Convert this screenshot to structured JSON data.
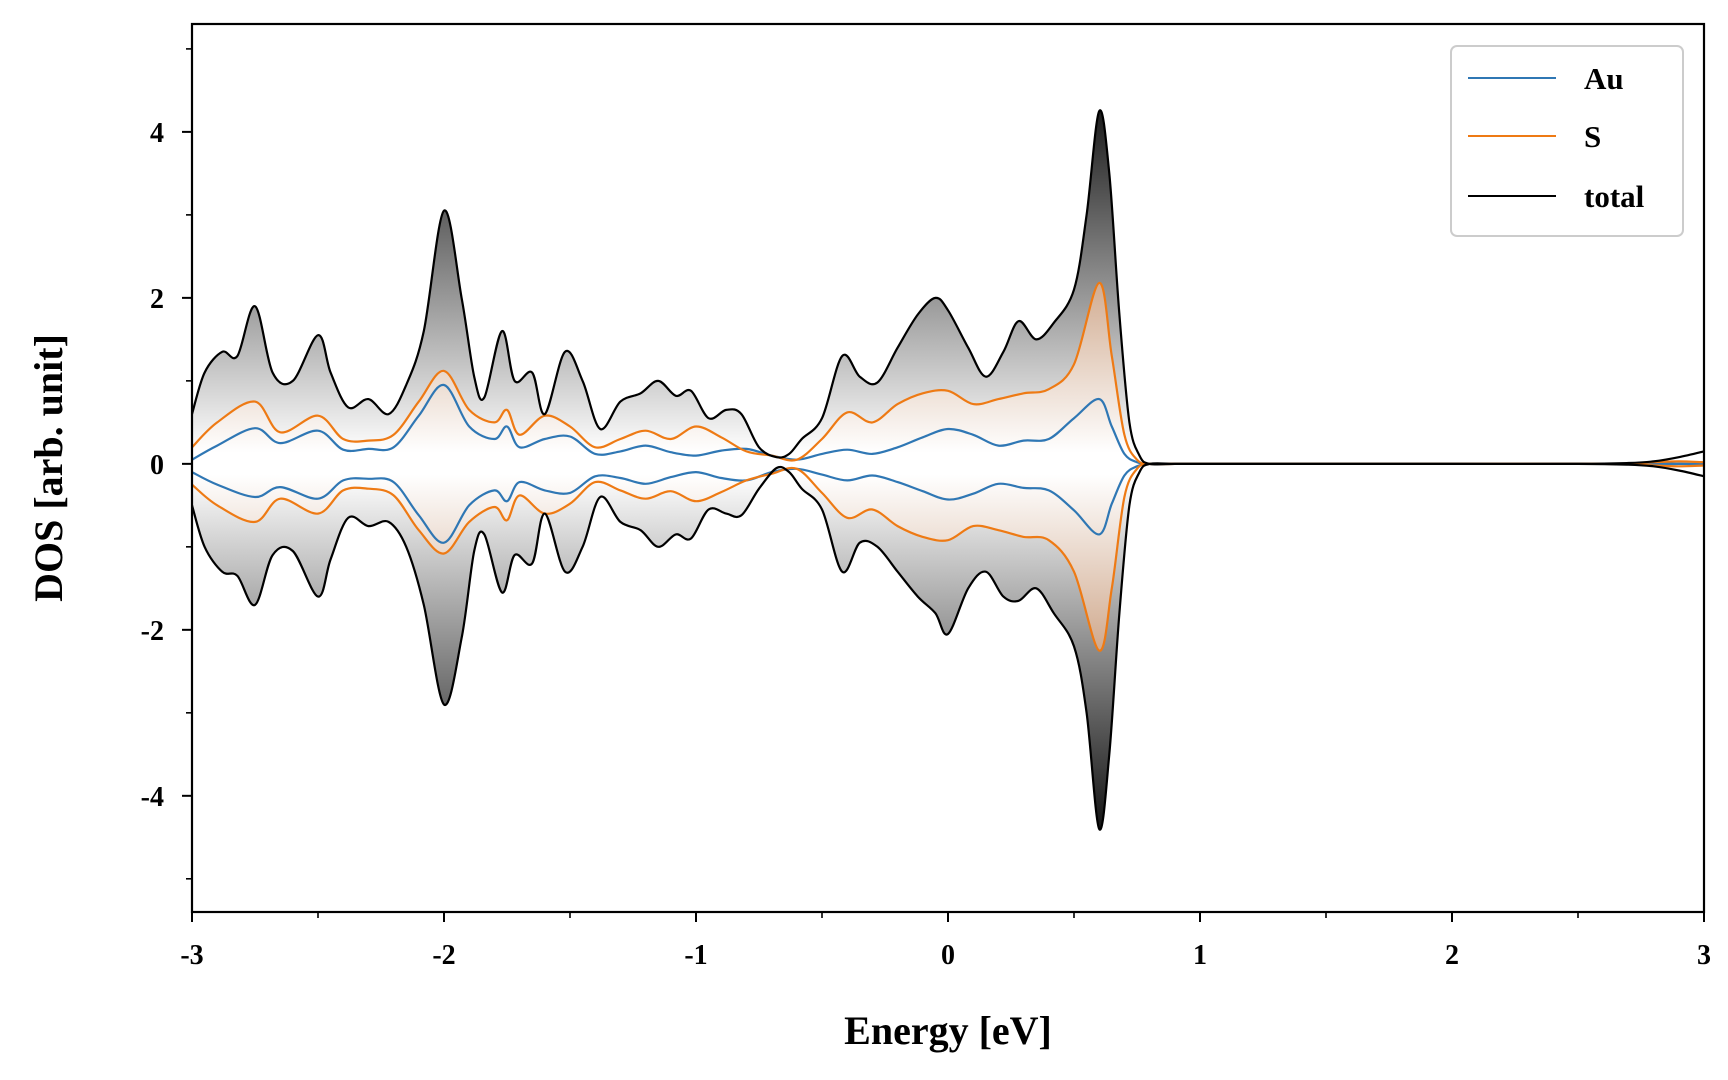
{
  "chart_data": {
    "type": "line",
    "xlabel": "Energy [eV]",
    "ylabel": "DOS [arb. unit]",
    "xlim": [
      -3,
      3
    ],
    "ylim": [
      -5.4,
      5.3
    ],
    "xticks": [
      -3,
      -2,
      -1,
      0,
      1,
      2,
      3
    ],
    "xtick_labels": [
      "-3",
      "-2",
      "-1",
      "0",
      "1",
      "2",
      "3"
    ],
    "yticks": [
      -4,
      -2,
      0,
      2,
      4
    ],
    "ytick_labels": [
      "-4",
      "-2",
      "0",
      "2",
      "4"
    ],
    "grid": false,
    "legend_position": "top-right",
    "fill": "vertical gradient shading between each curve and zero",
    "series": [
      {
        "name": "Au",
        "color": "#2f77b4",
        "x": [
          -3.0,
          -2.9,
          -2.75,
          -2.65,
          -2.5,
          -2.4,
          -2.3,
          -2.2,
          -2.1,
          -2.0,
          -1.9,
          -1.8,
          -1.75,
          -1.7,
          -1.6,
          -1.5,
          -1.4,
          -1.3,
          -1.2,
          -1.1,
          -1.0,
          -0.9,
          -0.8,
          -0.7,
          -0.6,
          -0.5,
          -0.4,
          -0.3,
          -0.2,
          -0.1,
          0.0,
          0.1,
          0.2,
          0.3,
          0.4,
          0.5,
          0.6,
          0.65,
          0.7,
          0.75,
          0.8,
          0.9,
          1.0,
          1.5,
          2.0,
          2.5,
          2.7,
          2.8,
          2.9,
          3.0
        ],
        "up": [
          0.05,
          0.22,
          0.43,
          0.25,
          0.4,
          0.17,
          0.18,
          0.2,
          0.58,
          0.95,
          0.45,
          0.3,
          0.45,
          0.2,
          0.3,
          0.33,
          0.12,
          0.15,
          0.22,
          0.14,
          0.1,
          0.16,
          0.18,
          0.1,
          0.05,
          0.12,
          0.17,
          0.12,
          0.2,
          0.32,
          0.42,
          0.35,
          0.22,
          0.28,
          0.3,
          0.55,
          0.78,
          0.45,
          0.12,
          0.02,
          0.0,
          0.0,
          0.0,
          0.0,
          0.0,
          0.0,
          0.0,
          0.01,
          0.0,
          0.0
        ],
        "down": [
          -0.1,
          -0.25,
          -0.4,
          -0.28,
          -0.42,
          -0.2,
          -0.18,
          -0.22,
          -0.62,
          -0.95,
          -0.5,
          -0.32,
          -0.45,
          -0.22,
          -0.32,
          -0.35,
          -0.15,
          -0.17,
          -0.24,
          -0.16,
          -0.1,
          -0.17,
          -0.2,
          -0.1,
          -0.06,
          -0.13,
          -0.2,
          -0.14,
          -0.22,
          -0.33,
          -0.43,
          -0.36,
          -0.24,
          -0.29,
          -0.32,
          -0.56,
          -0.85,
          -0.48,
          -0.14,
          -0.03,
          0.0,
          0.0,
          0.0,
          0.0,
          0.0,
          0.0,
          0.0,
          -0.01,
          0.0,
          0.0
        ]
      },
      {
        "name": "S",
        "color": "#ee7a14",
        "x": [
          -3.0,
          -2.9,
          -2.75,
          -2.65,
          -2.5,
          -2.4,
          -2.3,
          -2.2,
          -2.1,
          -2.0,
          -1.9,
          -1.8,
          -1.75,
          -1.7,
          -1.6,
          -1.5,
          -1.4,
          -1.3,
          -1.2,
          -1.1,
          -1.0,
          -0.9,
          -0.8,
          -0.7,
          -0.6,
          -0.5,
          -0.4,
          -0.3,
          -0.2,
          -0.1,
          0.0,
          0.1,
          0.2,
          0.3,
          0.4,
          0.5,
          0.6,
          0.65,
          0.7,
          0.75,
          0.8,
          0.9,
          1.0,
          1.5,
          2.0,
          2.5,
          2.7,
          2.8,
          2.9,
          3.0
        ],
        "up": [
          0.2,
          0.5,
          0.75,
          0.38,
          0.58,
          0.3,
          0.28,
          0.35,
          0.75,
          1.12,
          0.65,
          0.5,
          0.65,
          0.35,
          0.58,
          0.45,
          0.2,
          0.3,
          0.4,
          0.3,
          0.45,
          0.32,
          0.15,
          0.1,
          0.05,
          0.3,
          0.62,
          0.5,
          0.72,
          0.85,
          0.88,
          0.72,
          0.78,
          0.85,
          0.9,
          1.2,
          2.18,
          1.3,
          0.35,
          0.05,
          0.0,
          0.0,
          0.0,
          0.0,
          0.0,
          0.0,
          0.0,
          0.02,
          0.03,
          0.02
        ],
        "down": [
          -0.25,
          -0.5,
          -0.7,
          -0.42,
          -0.6,
          -0.32,
          -0.3,
          -0.38,
          -0.8,
          -1.08,
          -0.7,
          -0.52,
          -0.68,
          -0.38,
          -0.6,
          -0.48,
          -0.22,
          -0.32,
          -0.42,
          -0.33,
          -0.45,
          -0.34,
          -0.2,
          -0.12,
          -0.06,
          -0.35,
          -0.65,
          -0.55,
          -0.75,
          -0.88,
          -0.92,
          -0.75,
          -0.8,
          -0.88,
          -0.92,
          -1.3,
          -2.25,
          -1.5,
          -0.4,
          -0.06,
          0.0,
          0.0,
          0.0,
          0.0,
          0.0,
          0.0,
          0.0,
          -0.02,
          -0.03,
          -0.02
        ]
      },
      {
        "name": "total",
        "color": "#000000",
        "x": [
          -3.0,
          -2.95,
          -2.88,
          -2.82,
          -2.75,
          -2.68,
          -2.6,
          -2.5,
          -2.45,
          -2.38,
          -2.3,
          -2.22,
          -2.15,
          -2.08,
          -2.0,
          -1.93,
          -1.88,
          -1.84,
          -1.77,
          -1.72,
          -1.65,
          -1.6,
          -1.52,
          -1.45,
          -1.38,
          -1.3,
          -1.22,
          -1.15,
          -1.08,
          -1.02,
          -0.95,
          -0.88,
          -0.82,
          -0.75,
          -0.68,
          -0.63,
          -0.58,
          -0.5,
          -0.42,
          -0.35,
          -0.28,
          -0.2,
          -0.12,
          -0.05,
          0.0,
          0.08,
          0.15,
          0.22,
          0.28,
          0.35,
          0.42,
          0.5,
          0.55,
          0.6,
          0.64,
          0.68,
          0.72,
          0.76,
          0.8,
          0.9,
          1.0,
          1.5,
          2.0,
          2.5,
          2.7,
          2.8,
          2.9,
          3.0
        ],
        "up": [
          0.6,
          1.1,
          1.35,
          1.3,
          1.9,
          1.1,
          1.0,
          1.55,
          1.1,
          0.68,
          0.78,
          0.6,
          0.95,
          1.6,
          3.05,
          2.0,
          1.05,
          0.8,
          1.6,
          1.0,
          1.1,
          0.6,
          1.35,
          1.0,
          0.42,
          0.75,
          0.85,
          1.0,
          0.82,
          0.88,
          0.55,
          0.65,
          0.6,
          0.2,
          0.08,
          0.12,
          0.3,
          0.55,
          1.3,
          1.05,
          0.98,
          1.4,
          1.8,
          2.0,
          1.85,
          1.4,
          1.05,
          1.35,
          1.72,
          1.5,
          1.7,
          2.1,
          3.0,
          4.25,
          3.5,
          1.8,
          0.5,
          0.1,
          0.0,
          0.0,
          0.0,
          0.0,
          0.0,
          0.0,
          0.01,
          0.03,
          0.08,
          0.15
        ],
        "down": [
          -0.5,
          -1.0,
          -1.3,
          -1.35,
          -1.7,
          -1.1,
          -1.05,
          -1.6,
          -1.15,
          -0.65,
          -0.75,
          -0.7,
          -1.0,
          -1.7,
          -2.9,
          -2.1,
          -1.05,
          -0.85,
          -1.55,
          -1.1,
          -1.2,
          -0.6,
          -1.3,
          -1.0,
          -0.4,
          -0.7,
          -0.8,
          -1.0,
          -0.85,
          -0.9,
          -0.55,
          -0.6,
          -0.62,
          -0.3,
          -0.05,
          -0.1,
          -0.3,
          -0.55,
          -1.3,
          -0.95,
          -1.0,
          -1.3,
          -1.6,
          -1.8,
          -2.05,
          -1.5,
          -1.3,
          -1.6,
          -1.65,
          -1.5,
          -1.8,
          -2.2,
          -3.0,
          -4.4,
          -3.5,
          -1.8,
          -0.5,
          -0.1,
          0.0,
          0.0,
          0.0,
          0.0,
          0.0,
          0.0,
          -0.01,
          -0.03,
          -0.08,
          -0.15
        ]
      }
    ]
  }
}
